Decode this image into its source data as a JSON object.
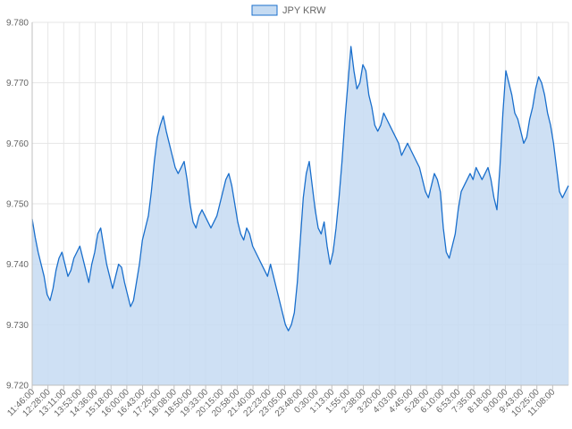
{
  "chart_data": {
    "type": "area",
    "legend": {
      "position": "top-center",
      "label": "JPY KRW"
    },
    "colors": {
      "line": "#1a6fcc",
      "fill": "#c5dbf2",
      "grid": "#e6e6e6",
      "axis": "#bfbfbf",
      "text": "#666666"
    },
    "grid": true,
    "ylim": [
      9.72,
      9.78
    ],
    "y_ticks": [
      "9.720",
      "9.730",
      "9.740",
      "9.750",
      "9.760",
      "9.770",
      "9.780"
    ],
    "x_ticks": [
      "11:46:00",
      "12:28:00",
      "13:11:00",
      "13:53:00",
      "14:36:00",
      "15:18:00",
      "16:00:00",
      "16:43:00",
      "17:25:00",
      "18:08:00",
      "18:50:00",
      "19:33:00",
      "20:15:00",
      "20:58:00",
      "21:40:00",
      "22:23:00",
      "23:05:00",
      "23:48:00",
      "0:30:00",
      "1:13:00",
      "1:55:00",
      "2:38:00",
      "3:20:00",
      "4:03:00",
      "4:45:00",
      "5:28:00",
      "6:10:00",
      "6:53:00",
      "7:35:00",
      "8:18:00",
      "9:00:00",
      "9:43:00",
      "10:25:00",
      "11:08:00"
    ],
    "series": [
      {
        "name": "JPY KRW",
        "values": [
          9.7475,
          9.7445,
          9.742,
          9.74,
          9.738,
          9.735,
          9.734,
          9.736,
          9.739,
          9.741,
          9.742,
          9.74,
          9.738,
          9.739,
          9.741,
          9.742,
          9.743,
          9.741,
          9.739,
          9.737,
          9.74,
          9.742,
          9.745,
          9.746,
          9.743,
          9.74,
          9.738,
          9.736,
          9.738,
          9.74,
          9.7395,
          9.737,
          9.735,
          9.733,
          9.734,
          9.737,
          9.74,
          9.744,
          9.746,
          9.748,
          9.752,
          9.757,
          9.761,
          9.763,
          9.7645,
          9.762,
          9.76,
          9.758,
          9.756,
          9.755,
          9.756,
          9.757,
          9.754,
          9.75,
          9.747,
          9.746,
          9.748,
          9.749,
          9.748,
          9.747,
          9.746,
          9.747,
          9.748,
          9.75,
          9.752,
          9.754,
          9.755,
          9.753,
          9.75,
          9.747,
          9.745,
          9.744,
          9.746,
          9.745,
          9.743,
          9.742,
          9.741,
          9.74,
          9.739,
          9.738,
          9.74,
          9.738,
          9.736,
          9.734,
          9.732,
          9.73,
          9.729,
          9.73,
          9.732,
          9.737,
          9.744,
          9.751,
          9.755,
          9.757,
          9.753,
          9.749,
          9.746,
          9.745,
          9.747,
          9.743,
          9.74,
          9.742,
          9.746,
          9.751,
          9.757,
          9.764,
          9.77,
          9.776,
          9.772,
          9.769,
          9.77,
          9.773,
          9.772,
          9.768,
          9.766,
          9.763,
          9.762,
          9.763,
          9.765,
          9.764,
          9.763,
          9.762,
          9.761,
          9.76,
          9.758,
          9.759,
          9.76,
          9.759,
          9.758,
          9.757,
          9.756,
          9.754,
          9.752,
          9.751,
          9.753,
          9.755,
          9.754,
          9.752,
          9.746,
          9.742,
          9.741,
          9.743,
          9.745,
          9.749,
          9.752,
          9.753,
          9.754,
          9.755,
          9.754,
          9.756,
          9.755,
          9.754,
          9.755,
          9.756,
          9.754,
          9.751,
          9.749,
          9.756,
          9.765,
          9.772,
          9.77,
          9.768,
          9.765,
          9.764,
          9.762,
          9.76,
          9.761,
          9.764,
          9.766,
          9.769,
          9.771,
          9.77,
          9.768,
          9.765,
          9.763,
          9.76,
          9.756,
          9.752,
          9.751,
          9.752,
          9.753
        ]
      }
    ]
  }
}
